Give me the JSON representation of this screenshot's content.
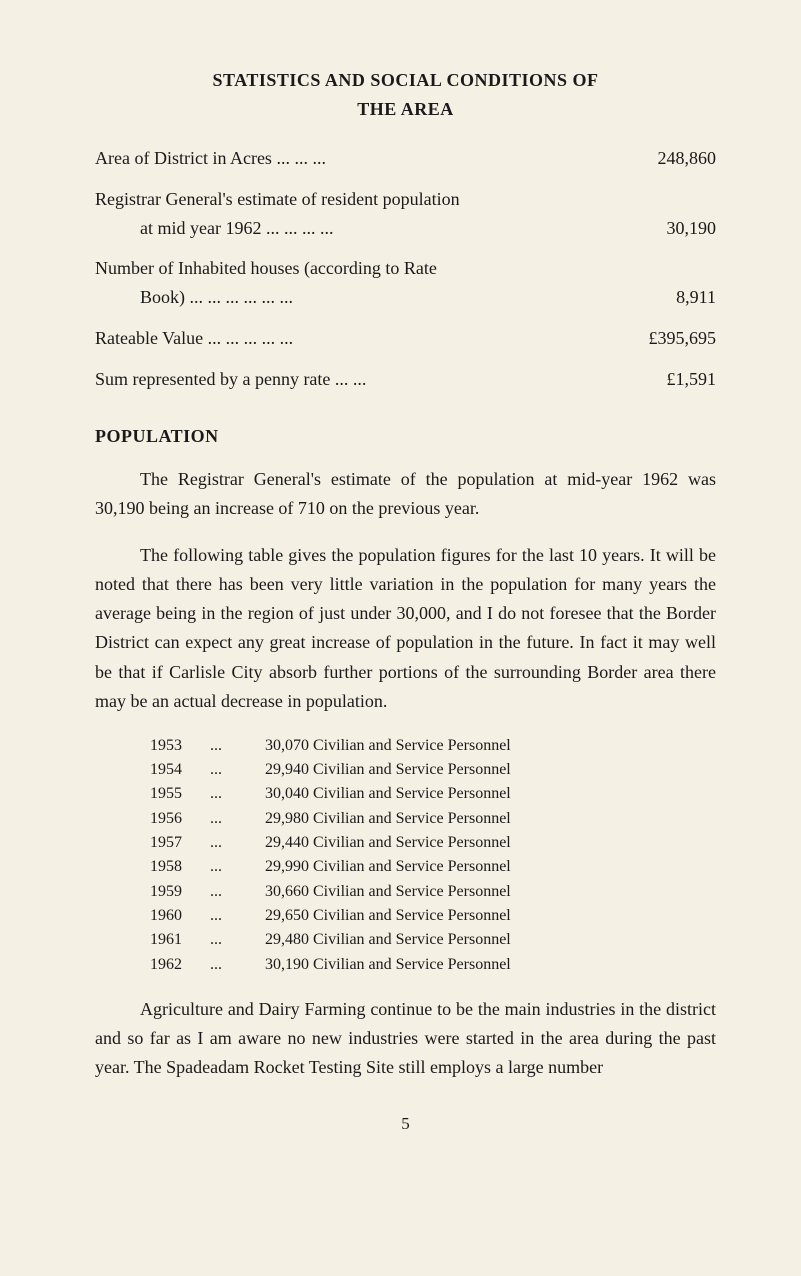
{
  "heading": {
    "main": "STATISTICS AND SOCIAL CONDITIONS OF",
    "sub": "THE AREA"
  },
  "stats": [
    {
      "label": "Area of District in Acres    ...    ...    ...",
      "value": "248,860"
    },
    {
      "label1": "Registrar General's estimate of resident population",
      "label2": "at mid year 1962    ...    ...    ...    ...",
      "value": "30,190",
      "multiline": true
    },
    {
      "label1": "Number of Inhabited houses (according to Rate",
      "label2": "Book)    ...    ...    ...    ...    ...    ...",
      "value": "8,911",
      "multiline": true
    },
    {
      "label": "Rateable Value    ...    ...    ...    ...    ...",
      "value": "£395,695"
    },
    {
      "label": "Sum represented by a penny rate    ...    ...",
      "value": "£1,591"
    }
  ],
  "section_title": "POPULATION",
  "paragraphs": [
    "The Registrar General's estimate of the population at mid-year 1962 was 30,190 being an increase of 710 on the previous year.",
    "The following table gives the population figures for the last 10 years. It will be noted that there has been very little variation in the population for many years the average being in the region of just under 30,000, and I do not foresee that the Border District can expect any great increase of population in the future. In fact it may well be that if Carlisle City absorb further portions of the surrounding Border area there may be an actual decrease in population."
  ],
  "years": [
    {
      "year": "1953",
      "dots": "...",
      "text": "30,070 Civilian and Service Personnel"
    },
    {
      "year": "1954",
      "dots": "...",
      "text": "29,940 Civilian and Service Personnel"
    },
    {
      "year": "1955",
      "dots": "...",
      "text": "30,040 Civilian and Service Personnel"
    },
    {
      "year": "1956",
      "dots": "...",
      "text": "29,980 Civilian and Service Personnel"
    },
    {
      "year": "1957",
      "dots": "...",
      "text": "29,440 Civilian and Service Personnel"
    },
    {
      "year": "1958",
      "dots": "...",
      "text": "29,990 Civilian and Service Personnel"
    },
    {
      "year": "1959",
      "dots": "...",
      "text": "30,660 Civilian and Service Personnel"
    },
    {
      "year": "1960",
      "dots": "...",
      "text": "29,650 Civilian and Service Personnel"
    },
    {
      "year": "1961",
      "dots": "...",
      "text": "29,480 Civilian and Service Personnel"
    },
    {
      "year": "1962",
      "dots": "...",
      "text": "30,190 Civilian and Service Personnel"
    }
  ],
  "closing_paragraph": "Agriculture and Dairy Farming continue to be the main industries in the district and so far as I am aware no new industries were started in the area during the past year. The Spadeadam Rocket Testing Site still employs a large number",
  "page_number": "5"
}
